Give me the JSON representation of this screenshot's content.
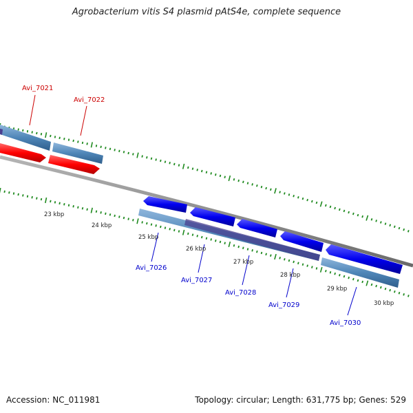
{
  "title": "Agrobacterium vitis S4 plasmid pAtS4e, complete sequence",
  "footer": {
    "accession": "Accession: NC_011981",
    "summary": "Topology: circular; Length: 631,775 bp; Genes: 529"
  },
  "colors": {
    "backbone": "#8a8a8a",
    "tick": "#1f8a1f",
    "forward_gene": "#ff0000",
    "reverse_gene": "#0000ee",
    "cds": "#4f86b8",
    "cds_dark": "#4a3f8f",
    "label_red": "#cc0000",
    "label_blue": "#0000cc"
  },
  "kbp_labels": [
    "23 kbp",
    "24 kbp",
    "25 kbp",
    "26 kbp",
    "27 kbp",
    "28 kbp",
    "29 kbp",
    "30 kbp"
  ],
  "gene_labels": {
    "forward": [
      "Avi_7021",
      "Avi_7022"
    ],
    "reverse": [
      "Avi_7026",
      "Avi_7027",
      "Avi_7028",
      "Avi_7029",
      "Avi_7030"
    ]
  }
}
